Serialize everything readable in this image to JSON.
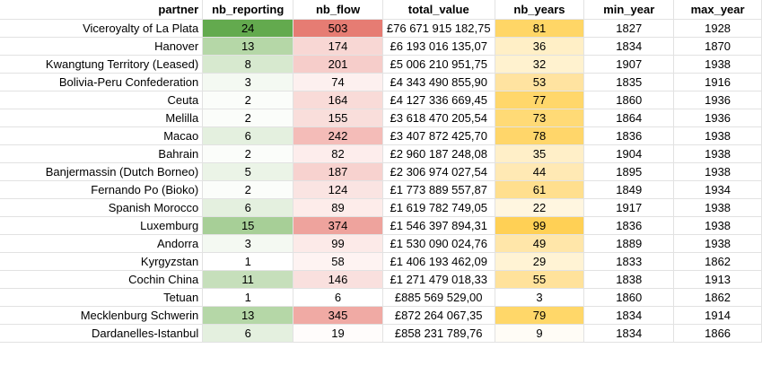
{
  "columns": [
    "partner",
    "nb_reporting",
    "nb_flow",
    "total_value",
    "nb_years",
    "min_year",
    "max_year"
  ],
  "rows": [
    {
      "partner": "Viceroyalty of La Plata",
      "nb_reporting": "24",
      "nb_flow": "503",
      "total_value": "£76 671 915 182,75",
      "nb_years": "81",
      "min_year": "1827",
      "max_year": "1928",
      "colors": {
        "nb_reporting": "#63aa4e",
        "nb_flow": "#e67c73",
        "nb_years": "#ffd666"
      }
    },
    {
      "partner": "Hanover",
      "nb_reporting": "13",
      "nb_flow": "174",
      "total_value": "£6 193 016 135,07",
      "nb_years": "36",
      "min_year": "1834",
      "max_year": "1870",
      "colors": {
        "nb_reporting": "#b5d7a7",
        "nb_flow": "#f8d7d4",
        "nb_years": "#ffefc6"
      }
    },
    {
      "partner": "Kwangtung Territory (Leased)",
      "nb_reporting": "8",
      "nb_flow": "201",
      "total_value": "£5 006 210 951,75",
      "nb_years": "32",
      "min_year": "1907",
      "max_year": "1938",
      "colors": {
        "nb_reporting": "#d7e9cf",
        "nb_flow": "#f6cdca",
        "nb_years": "#fff2cf"
      }
    },
    {
      "partner": "Bolivia-Peru Confederation",
      "nb_reporting": "3",
      "nb_flow": "74",
      "total_value": "£4 343 490 855,90",
      "nb_years": "53",
      "min_year": "1835",
      "max_year": "1916",
      "colors": {
        "nb_reporting": "#f4f9f2",
        "nb_flow": "#fdf0ef",
        "nb_years": "#ffe3a0"
      }
    },
    {
      "partner": "Ceuta",
      "nb_reporting": "2",
      "nb_flow": "164",
      "total_value": "£4 127 336 669,45",
      "nb_years": "77",
      "min_year": "1860",
      "max_year": "1936",
      "colors": {
        "nb_reporting": "#fbfdfa",
        "nb_flow": "#f9dbd8",
        "nb_years": "#ffd76b"
      }
    },
    {
      "partner": "Melilla",
      "nb_reporting": "2",
      "nb_flow": "155",
      "total_value": "£3 618 470 205,54",
      "nb_years": "73",
      "min_year": "1864",
      "max_year": "1936",
      "colors": {
        "nb_reporting": "#fbfdfa",
        "nb_flow": "#f9dedb",
        "nb_years": "#ffda76"
      }
    },
    {
      "partner": "Macao",
      "nb_reporting": "6",
      "nb_flow": "242",
      "total_value": "£3 407 872 425,70",
      "nb_years": "78",
      "min_year": "1836",
      "max_year": "1938",
      "colors": {
        "nb_reporting": "#e4f0df",
        "nb_flow": "#f4bcb8",
        "nb_years": "#ffd66a"
      }
    },
    {
      "partner": "Bahrain",
      "nb_reporting": "2",
      "nb_flow": "82",
      "total_value": "£2 960 187 248,08",
      "nb_years": "35",
      "min_year": "1904",
      "max_year": "1938",
      "colors": {
        "nb_reporting": "#fbfdfa",
        "nb_flow": "#fdedec",
        "nb_years": "#ffefc8"
      }
    },
    {
      "partner": "Banjermassin (Dutch Borneo)",
      "nb_reporting": "5",
      "nb_flow": "187",
      "total_value": "£2 306 974 027,54",
      "nb_years": "44",
      "min_year": "1895",
      "max_year": "1938",
      "colors": {
        "nb_reporting": "#ebf4e7",
        "nb_flow": "#f7d2cf",
        "nb_years": "#ffe9b4"
      }
    },
    {
      "partner": "Fernando Po (Bioko)",
      "nb_reporting": "2",
      "nb_flow": "124",
      "total_value": "£1 773 889 557,87",
      "nb_years": "61",
      "min_year": "1849",
      "max_year": "1934",
      "colors": {
        "nb_reporting": "#fbfdfa",
        "nb_flow": "#fae4e2",
        "nb_years": "#ffdf8e"
      }
    },
    {
      "partner": "Spanish Morocco",
      "nb_reporting": "6",
      "nb_flow": "89",
      "total_value": "£1 619 782 749,05",
      "nb_years": "22",
      "min_year": "1917",
      "max_year": "1938",
      "colors": {
        "nb_reporting": "#e4f0df",
        "nb_flow": "#fdecea",
        "nb_years": "#fff6e0"
      }
    },
    {
      "partner": "Luxemburg",
      "nb_reporting": "15",
      "nb_flow": "374",
      "total_value": "£1 546 397 894,31",
      "nb_years": "99",
      "min_year": "1836",
      "max_year": "1938",
      "colors": {
        "nb_reporting": "#a7cf97",
        "nb_flow": "#eea39d",
        "nb_years": "#ffd055"
      }
    },
    {
      "partner": "Andorra",
      "nb_reporting": "3",
      "nb_flow": "99",
      "total_value": "£1 530 090 024,76",
      "nb_years": "49",
      "min_year": "1889",
      "max_year": "1938",
      "colors": {
        "nb_reporting": "#f4f9f2",
        "nb_flow": "#fceae8",
        "nb_years": "#ffe6a9"
      }
    },
    {
      "partner": "Kyrgyzstan",
      "nb_reporting": "1",
      "nb_flow": "58",
      "total_value": "£1 406 193 462,09",
      "nb_years": "29",
      "min_year": "1833",
      "max_year": "1862",
      "colors": {
        "nb_reporting": "#ffffff",
        "nb_flow": "#fef3f2",
        "nb_years": "#fff3d4"
      }
    },
    {
      "partner": "Cochin China",
      "nb_reporting": "11",
      "nb_flow": "146",
      "total_value": "£1 271 479 018,33",
      "nb_years": "55",
      "min_year": "1838",
      "max_year": "1913",
      "colors": {
        "nb_reporting": "#c6dfbb",
        "nb_flow": "#f9e0de",
        "nb_years": "#ffe29b"
      }
    },
    {
      "partner": "Tetuan",
      "nb_reporting": "1",
      "nb_flow": "6",
      "total_value": "£885 569 529,00",
      "nb_years": "3",
      "min_year": "1860",
      "max_year": "1862",
      "colors": {
        "nb_reporting": "#ffffff",
        "nb_flow": "#ffffff",
        "nb_years": "#ffffff"
      }
    },
    {
      "partner": "Mecklenburg Schwerin",
      "nb_reporting": "13",
      "nb_flow": "345",
      "total_value": "£872 264 067,35",
      "nb_years": "79",
      "min_year": "1834",
      "max_year": "1914",
      "colors": {
        "nb_reporting": "#b5d7a7",
        "nb_flow": "#f0aaa4",
        "nb_years": "#ffd769"
      }
    },
    {
      "partner": "Dardanelles-Istanbul",
      "nb_reporting": "6",
      "nb_flow": "19",
      "total_value": "£858 231 789,76",
      "nb_years": "9",
      "min_year": "1834",
      "max_year": "1866",
      "colors": {
        "nb_reporting": "#e4f0df",
        "nb_flow": "#fffcfb",
        "nb_years": "#fffcf6"
      }
    }
  ]
}
